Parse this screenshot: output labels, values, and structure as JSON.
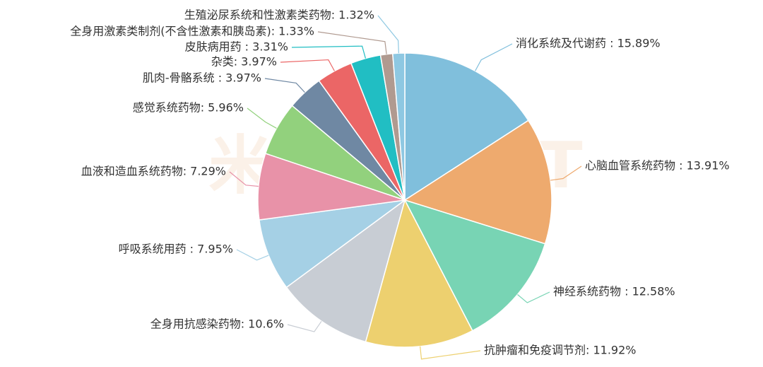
{
  "chart_data": {
    "type": "pie",
    "watermark": "米内MENET",
    "values": [
      15.89,
      13.91,
      12.58,
      11.92,
      10.6,
      7.95,
      7.29,
      5.96,
      3.97,
      3.97,
      3.31,
      1.33,
      1.32
    ],
    "value_labels": [
      "消化系统及代谢药 : 15.89%",
      "心脑血管系统药物 : 13.91%",
      "神经系统药物 : 12.58%",
      "抗肿瘤和免疫调节剂: 11.92%",
      "全身用抗感染药物: 10.6%",
      "呼吸系统用药 : 7.95%",
      "血液和造血系统药物: 7.29%",
      "感觉系统药物: 5.96%",
      "肌肉-骨骼系统 : 3.97%",
      "杂类: 3.97%",
      "皮肤病用药 : 3.31%",
      "全身用激素类制剂(不含性激素和胰岛素): 1.33%",
      "生殖泌尿系统和性激素类药物: 1.32%"
    ],
    "colors": [
      "#80bfdc",
      "#eeaa6e",
      "#78d4b4",
      "#edd06f",
      "#c8cdd4",
      "#a5d0e5",
      "#e892a8",
      "#92d17d",
      "#6f88a3",
      "#eb6666",
      "#21bec3",
      "#b09a90",
      "#8ec8e2"
    ]
  }
}
